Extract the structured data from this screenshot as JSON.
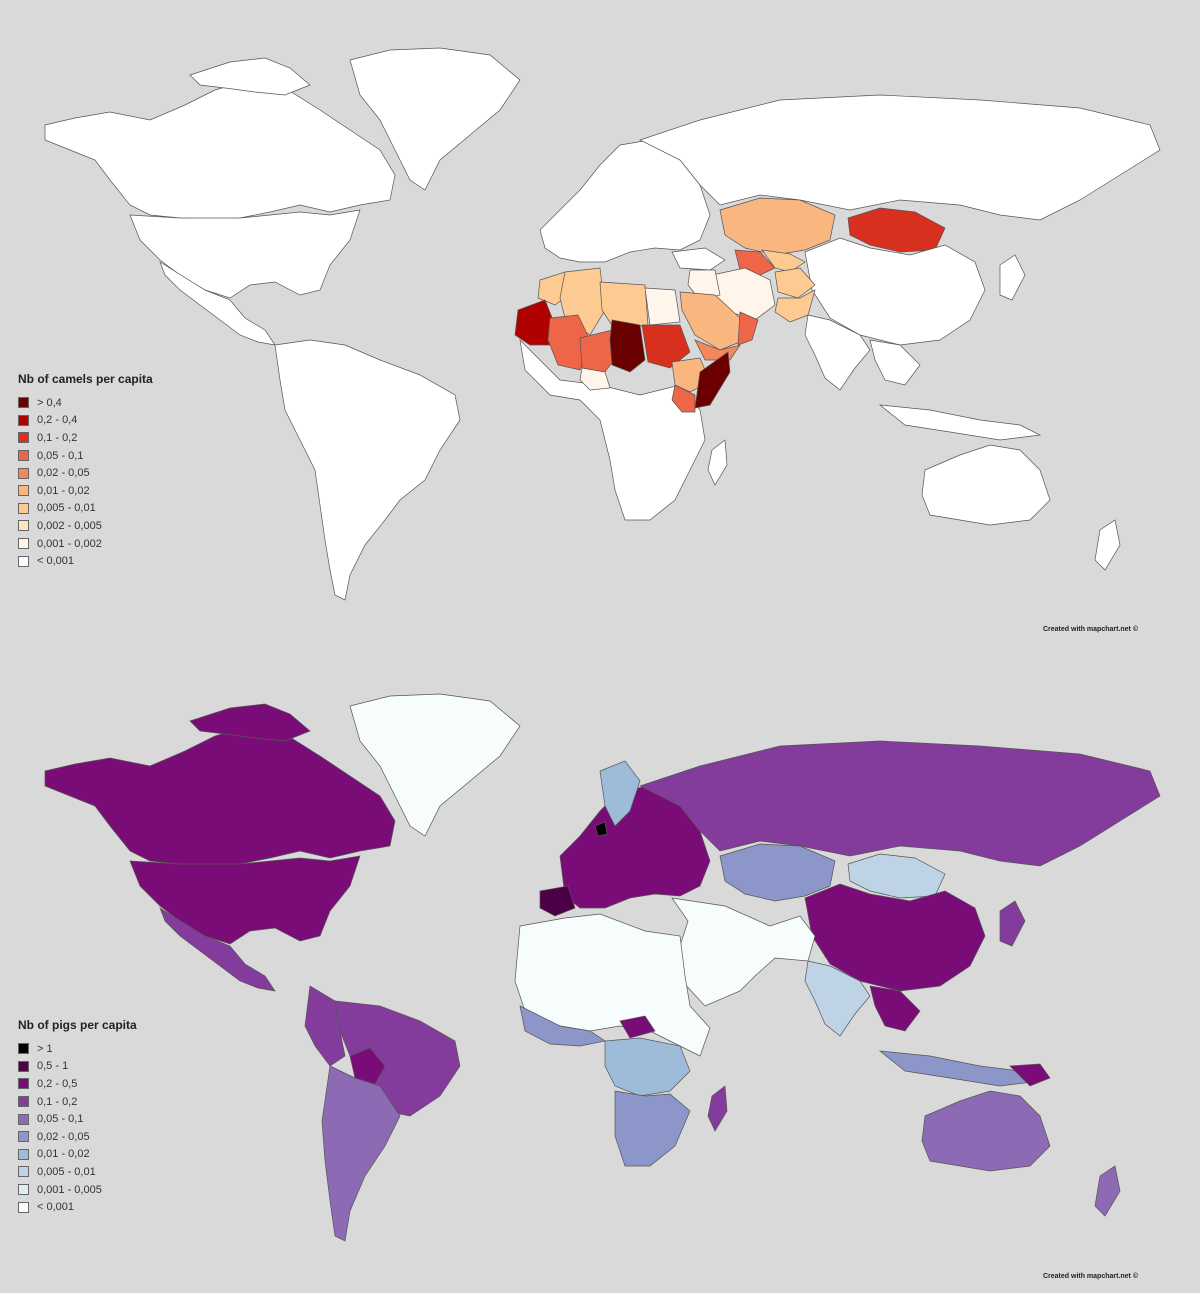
{
  "maps": [
    {
      "id": "camels",
      "legend": {
        "title": "Nb of camels per capita",
        "items": [
          {
            "label": "> 0,4",
            "color": "#6b0000"
          },
          {
            "label": "0,2 - 0,4",
            "color": "#b00000"
          },
          {
            "label": "0,1 - 0,2",
            "color": "#d7301f"
          },
          {
            "label": "0,05 - 0,1",
            "color": "#ef6548"
          },
          {
            "label": "0,02 - 0,05",
            "color": "#f4875c"
          },
          {
            "label": "0,01 - 0,02",
            "color": "#f9b77f"
          },
          {
            "label": "0,005 - 0,01",
            "color": "#fdcb91"
          },
          {
            "label": "0,002 - 0,005",
            "color": "#fee4c3"
          },
          {
            "label": "0,001 - 0,002",
            "color": "#fff5ea"
          },
          {
            "label": "< 0,001",
            "color": "#ffffff"
          }
        ]
      },
      "credit": "Created with mapchart.net ©"
    },
    {
      "id": "pigs",
      "legend": {
        "title": "Nb of pigs per capita",
        "items": [
          {
            "label": "> 1",
            "color": "#000000"
          },
          {
            "label": "0,5 - 1",
            "color": "#4d0048"
          },
          {
            "label": "0,2 - 0,5",
            "color": "#7a0c78"
          },
          {
            "label": "0,1 - 0,2",
            "color": "#843c9c"
          },
          {
            "label": "0,05 - 0,1",
            "color": "#8c6bb4"
          },
          {
            "label": "0,02 - 0,05",
            "color": "#8c96c8"
          },
          {
            "label": "0,01 - 0,02",
            "color": "#9ebcda"
          },
          {
            "label": "0,005 - 0,01",
            "color": "#bfd3e6"
          },
          {
            "label": "0,001 - 0,005",
            "color": "#e0ecf4"
          },
          {
            "label": "< 0,001",
            "color": "#f7fcfd"
          }
        ]
      },
      "credit": "Created with mapchart.net ©"
    }
  ]
}
